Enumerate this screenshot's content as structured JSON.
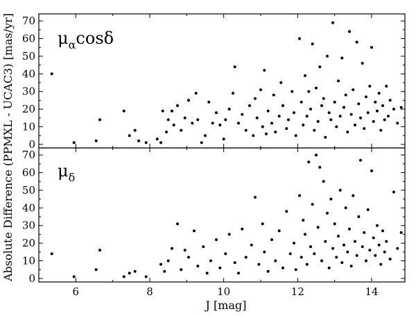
{
  "figure": {
    "xlabel": "J [mag]",
    "ylabel": "Absolute Difference (PPMXL - UCAC3) [mas/yr]"
  },
  "chart_data": [
    {
      "type": "scatter",
      "panel": "top",
      "label": {
        "base": "μ",
        "sub": "α",
        "suffix": "cosδ"
      },
      "xlim": [
        5.0,
        14.9
      ],
      "ylim": [
        -2,
        74
      ],
      "xticks": [
        6,
        8,
        10,
        12,
        14
      ],
      "yticks": [
        0,
        10,
        20,
        30,
        40,
        50,
        60,
        70
      ],
      "x_tick_labels_shown": false,
      "grid": false,
      "points": [
        [
          5.35,
          40
        ],
        [
          5.95,
          1
        ],
        [
          6.55,
          2
        ],
        [
          6.65,
          14
        ],
        [
          7.3,
          19
        ],
        [
          7.45,
          5
        ],
        [
          7.6,
          8
        ],
        [
          7.7,
          2
        ],
        [
          7.9,
          1
        ],
        [
          8.2,
          3
        ],
        [
          8.3,
          1
        ],
        [
          8.35,
          19
        ],
        [
          8.45,
          7
        ],
        [
          8.5,
          14
        ],
        [
          8.6,
          19
        ],
        [
          8.65,
          11
        ],
        [
          8.75,
          22
        ],
        [
          8.85,
          8
        ],
        [
          8.95,
          15
        ],
        [
          9.05,
          25
        ],
        [
          9.15,
          12
        ],
        [
          9.25,
          29
        ],
        [
          9.3,
          14
        ],
        [
          9.4,
          1
        ],
        [
          9.5,
          5
        ],
        [
          9.6,
          24
        ],
        [
          9.7,
          12
        ],
        [
          9.8,
          18
        ],
        [
          9.9,
          11
        ],
        [
          10.0,
          3
        ],
        [
          10.05,
          14
        ],
        [
          10.15,
          20
        ],
        [
          10.25,
          29
        ],
        [
          10.3,
          44
        ],
        [
          10.4,
          12
        ],
        [
          10.5,
          17
        ],
        [
          10.6,
          8
        ],
        [
          10.7,
          22
        ],
        [
          10.8,
          5
        ],
        [
          10.85,
          26
        ],
        [
          10.9,
          15
        ],
        [
          11.0,
          31
        ],
        [
          11.05,
          10
        ],
        [
          11.1,
          42
        ],
        [
          11.15,
          6
        ],
        [
          11.2,
          19
        ],
        [
          11.3,
          12
        ],
        [
          11.35,
          28
        ],
        [
          11.4,
          7
        ],
        [
          11.5,
          16
        ],
        [
          11.55,
          35
        ],
        [
          11.6,
          22
        ],
        [
          11.7,
          9
        ],
        [
          11.75,
          14
        ],
        [
          11.85,
          30
        ],
        [
          11.9,
          18
        ],
        [
          11.95,
          5
        ],
        [
          12.05,
          60
        ],
        [
          12.1,
          24
        ],
        [
          12.15,
          11
        ],
        [
          12.2,
          39
        ],
        [
          12.25,
          16
        ],
        [
          12.3,
          30
        ],
        [
          12.35,
          20
        ],
        [
          12.4,
          57
        ],
        [
          12.45,
          8
        ],
        [
          12.5,
          32
        ],
        [
          12.55,
          13
        ],
        [
          12.6,
          44
        ],
        [
          12.65,
          22
        ],
        [
          12.7,
          26
        ],
        [
          12.75,
          4
        ],
        [
          12.8,
          50
        ],
        [
          12.85,
          18
        ],
        [
          12.9,
          14
        ],
        [
          12.95,
          69
        ],
        [
          13.0,
          24
        ],
        [
          13.05,
          10
        ],
        [
          13.1,
          36
        ],
        [
          13.15,
          16
        ],
        [
          13.2,
          49
        ],
        [
          13.25,
          21
        ],
        [
          13.3,
          28
        ],
        [
          13.35,
          7
        ],
        [
          13.4,
          64
        ],
        [
          13.45,
          17
        ],
        [
          13.5,
          31
        ],
        [
          13.55,
          11
        ],
        [
          13.6,
          58
        ],
        [
          13.65,
          23
        ],
        [
          13.7,
          15
        ],
        [
          13.75,
          46
        ],
        [
          13.8,
          9
        ],
        [
          13.85,
          27
        ],
        [
          13.9,
          18
        ],
        [
          13.95,
          33
        ],
        [
          14.0,
          55
        ],
        [
          14.05,
          13
        ],
        [
          14.1,
          24
        ],
        [
          14.15,
          19
        ],
        [
          14.2,
          29
        ],
        [
          14.25,
          8
        ],
        [
          14.3,
          22
        ],
        [
          14.35,
          14
        ],
        [
          14.4,
          33
        ],
        [
          14.45,
          16
        ],
        [
          14.5,
          25
        ],
        [
          14.6,
          20
        ],
        [
          14.7,
          12
        ],
        [
          14.8,
          21
        ]
      ]
    },
    {
      "type": "scatter",
      "panel": "bottom",
      "label": {
        "base": "μ",
        "sub": "δ",
        "suffix": ""
      },
      "xlim": [
        5.0,
        14.9
      ],
      "ylim": [
        -2,
        74
      ],
      "xticks": [
        6,
        8,
        10,
        12,
        14
      ],
      "yticks": [
        0,
        10,
        20,
        30,
        40,
        50,
        60,
        70
      ],
      "grid": false,
      "points": [
        [
          5.35,
          14
        ],
        [
          5.95,
          1
        ],
        [
          6.55,
          5
        ],
        [
          6.65,
          16
        ],
        [
          7.3,
          1
        ],
        [
          7.45,
          3
        ],
        [
          7.6,
          4
        ],
        [
          7.9,
          1
        ],
        [
          8.3,
          8
        ],
        [
          8.4,
          4
        ],
        [
          8.5,
          10
        ],
        [
          8.6,
          17
        ],
        [
          8.75,
          31
        ],
        [
          8.85,
          5
        ],
        [
          8.95,
          16
        ],
        [
          9.05,
          12
        ],
        [
          9.2,
          27
        ],
        [
          9.3,
          7
        ],
        [
          9.45,
          18
        ],
        [
          9.55,
          3
        ],
        [
          9.65,
          10
        ],
        [
          9.8,
          22
        ],
        [
          9.9,
          6
        ],
        [
          10.05,
          14
        ],
        [
          10.15,
          25
        ],
        [
          10.3,
          9
        ],
        [
          10.4,
          3
        ],
        [
          10.5,
          28
        ],
        [
          10.6,
          12
        ],
        [
          10.75,
          19
        ],
        [
          10.85,
          46
        ],
        [
          10.95,
          8
        ],
        [
          11.05,
          31
        ],
        [
          11.1,
          15
        ],
        [
          11.2,
          4
        ],
        [
          11.3,
          22
        ],
        [
          11.4,
          10
        ],
        [
          11.5,
          27
        ],
        [
          11.6,
          6
        ],
        [
          11.7,
          38
        ],
        [
          11.8,
          14
        ],
        [
          11.9,
          20
        ],
        [
          11.95,
          5
        ],
        [
          12.05,
          47
        ],
        [
          12.1,
          12
        ],
        [
          12.15,
          33
        ],
        [
          12.2,
          25
        ],
        [
          12.25,
          8
        ],
        [
          12.3,
          66
        ],
        [
          12.35,
          18
        ],
        [
          12.4,
          42
        ],
        [
          12.45,
          14
        ],
        [
          12.5,
          70
        ],
        [
          12.55,
          29
        ],
        [
          12.6,
          63
        ],
        [
          12.65,
          10
        ],
        [
          12.7,
          55
        ],
        [
          12.75,
          21
        ],
        [
          12.8,
          37
        ],
        [
          12.85,
          6
        ],
        [
          12.9,
          45
        ],
        [
          12.95,
          17
        ],
        [
          13.0,
          31
        ],
        [
          13.05,
          12
        ],
        [
          13.1,
          24
        ],
        [
          13.15,
          50
        ],
        [
          13.2,
          9
        ],
        [
          13.25,
          19
        ],
        [
          13.3,
          40
        ],
        [
          13.35,
          15
        ],
        [
          13.4,
          28
        ],
        [
          13.45,
          7
        ],
        [
          13.5,
          47
        ],
        [
          13.55,
          21
        ],
        [
          13.6,
          13
        ],
        [
          13.65,
          35
        ],
        [
          13.7,
          67
        ],
        [
          13.75,
          18
        ],
        [
          13.8,
          26
        ],
        [
          13.85,
          10
        ],
        [
          13.9,
          39
        ],
        [
          13.95,
          16
        ],
        [
          14.0,
          61
        ],
        [
          14.05,
          23
        ],
        [
          14.1,
          13
        ],
        [
          14.15,
          30
        ],
        [
          14.2,
          19
        ],
        [
          14.25,
          8
        ],
        [
          14.3,
          27
        ],
        [
          14.35,
          15
        ],
        [
          14.4,
          21
        ],
        [
          14.5,
          11
        ],
        [
          14.6,
          49
        ],
        [
          14.7,
          17
        ],
        [
          14.8,
          26
        ]
      ]
    }
  ]
}
